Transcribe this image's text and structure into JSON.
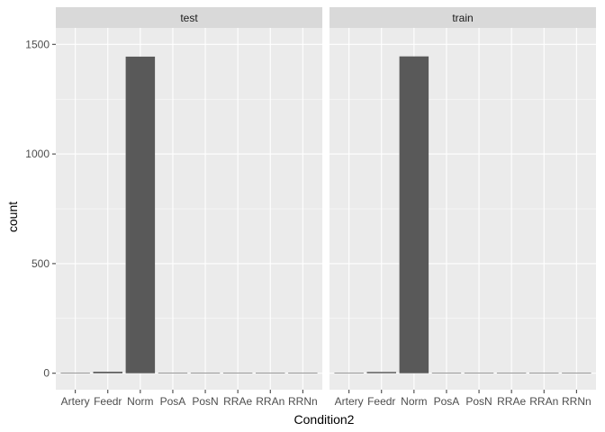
{
  "chart_data": {
    "type": "bar",
    "facet_variable_panels": [
      "test",
      "train"
    ],
    "categories": [
      "Artery",
      "Feedr",
      "Norm",
      "PosA",
      "PosN",
      "RRAe",
      "RRAn",
      "RRNn"
    ],
    "panels": [
      {
        "label": "test",
        "values": [
          2,
          7,
          1444,
          2,
          2,
          0,
          0,
          1
        ]
      },
      {
        "label": "train",
        "values": [
          2,
          6,
          1445,
          1,
          2,
          1,
          1,
          2
        ]
      }
    ],
    "xlabel": "Condition2",
    "ylabel": "count",
    "yticks": [
      0,
      500,
      1000,
      1500
    ],
    "ylim": [
      -75,
      1575
    ],
    "bar_color": "#595959",
    "panel_background": "#ebebeb",
    "strip_background": "#d9d9d9",
    "grid": true,
    "legend": "none"
  }
}
